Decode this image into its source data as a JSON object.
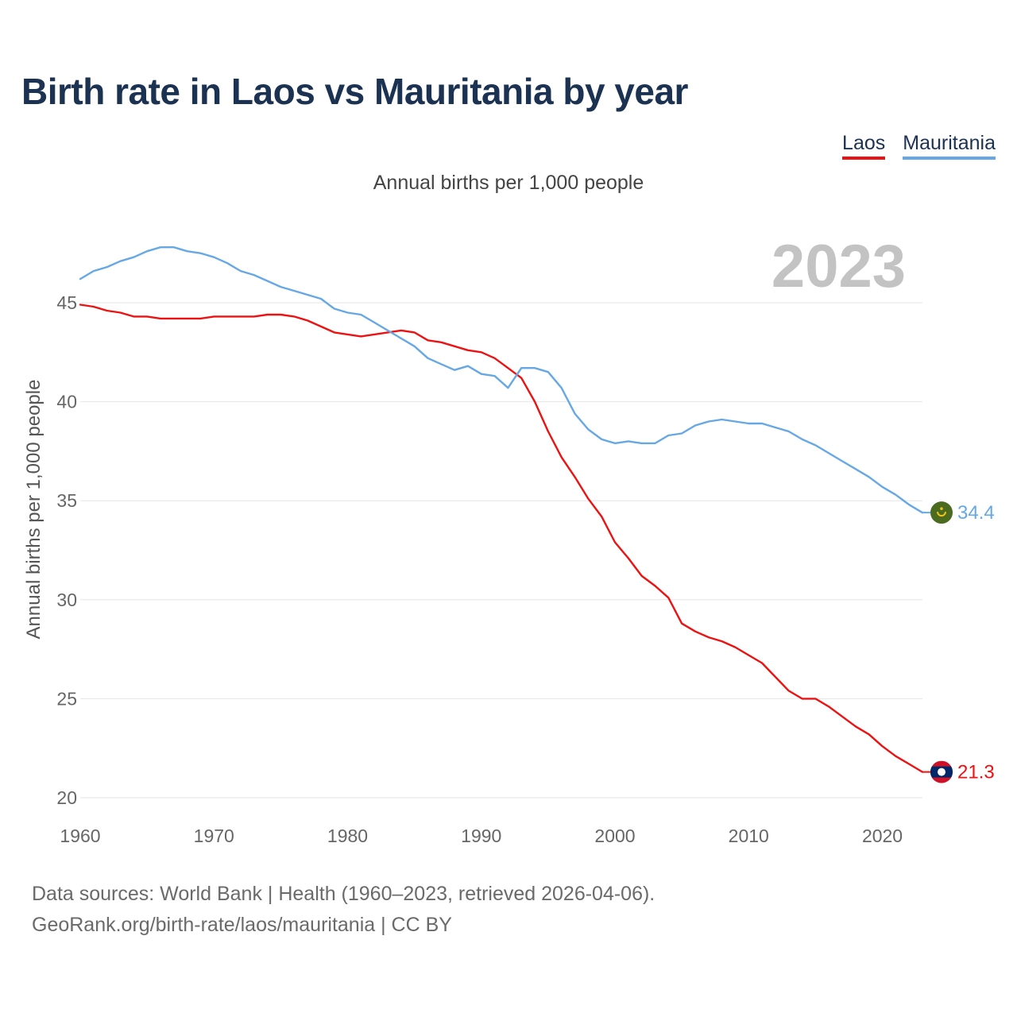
{
  "title": "Birth rate in Laos vs Mauritania by year",
  "subtitle": "Annual births per 1,000 people",
  "footer": {
    "line1": "Data sources: World Bank | Health (1960–2023, retrieved 2026-04-06).",
    "line2": "GeoRank.org/birth-rate/laos/mauritania | CC BY"
  },
  "chart_data": {
    "type": "line",
    "title": "Birth rate in Laos vs Mauritania by year",
    "subtitle": "Annual births per 1,000 people",
    "year_label": "2023",
    "xlabel": "",
    "ylabel": "Annual births per 1,000 people",
    "xlim": [
      1960,
      2023
    ],
    "ylim": [
      20,
      48
    ],
    "xticks": [
      1960,
      1970,
      1980,
      1990,
      2000,
      2010,
      2020
    ],
    "yticks": [
      20,
      25,
      30,
      35,
      40,
      45
    ],
    "grid": true,
    "legend_position": "top-right",
    "x": [
      1960,
      1961,
      1962,
      1963,
      1964,
      1965,
      1966,
      1967,
      1968,
      1969,
      1970,
      1971,
      1972,
      1973,
      1974,
      1975,
      1976,
      1977,
      1978,
      1979,
      1980,
      1981,
      1982,
      1983,
      1984,
      1985,
      1986,
      1987,
      1988,
      1989,
      1990,
      1991,
      1992,
      1993,
      1994,
      1995,
      1996,
      1997,
      1998,
      1999,
      2000,
      2001,
      2002,
      2003,
      2004,
      2005,
      2006,
      2007,
      2008,
      2009,
      2010,
      2011,
      2012,
      2013,
      2014,
      2015,
      2016,
      2017,
      2018,
      2019,
      2020,
      2021,
      2022,
      2023
    ],
    "series": [
      {
        "name": "Laos",
        "color": "#ee1111",
        "end_label": "21.3",
        "flag": "laos-flag",
        "values": [
          44.9,
          44.8,
          44.6,
          44.5,
          44.3,
          44.3,
          44.2,
          44.2,
          44.2,
          44.2,
          44.3,
          44.3,
          44.3,
          44.3,
          44.4,
          44.4,
          44.3,
          44.1,
          43.8,
          43.5,
          43.4,
          43.3,
          43.4,
          43.5,
          43.6,
          43.5,
          43.1,
          43.0,
          42.8,
          42.6,
          42.5,
          42.2,
          41.7,
          41.2,
          40.0,
          38.5,
          37.2,
          36.2,
          35.1,
          34.2,
          32.9,
          32.1,
          31.2,
          30.7,
          30.1,
          28.8,
          28.4,
          28.1,
          27.9,
          27.6,
          27.2,
          26.8,
          26.1,
          25.4,
          25.0,
          25.0,
          24.6,
          24.1,
          23.6,
          23.2,
          22.6,
          22.1,
          21.7,
          21.3
        ]
      },
      {
        "name": "Mauritania",
        "color": "#66a8e6",
        "end_label": "34.4",
        "flag": "mauritania-flag",
        "values": [
          46.2,
          46.6,
          46.8,
          47.1,
          47.3,
          47.6,
          47.8,
          47.8,
          47.6,
          47.5,
          47.3,
          47.0,
          46.6,
          46.4,
          46.1,
          45.8,
          45.6,
          45.4,
          45.2,
          44.7,
          44.5,
          44.4,
          44.0,
          43.6,
          43.2,
          42.8,
          42.2,
          41.9,
          41.6,
          41.8,
          41.4,
          41.3,
          40.7,
          41.7,
          41.7,
          41.5,
          40.7,
          39.4,
          38.6,
          38.1,
          37.9,
          38.0,
          37.9,
          37.9,
          38.3,
          38.4,
          38.8,
          39.0,
          39.1,
          39.0,
          38.9,
          38.9,
          38.7,
          38.5,
          38.1,
          37.8,
          37.4,
          37.0,
          36.6,
          36.2,
          35.7,
          35.3,
          34.8,
          34.4
        ]
      }
    ]
  }
}
